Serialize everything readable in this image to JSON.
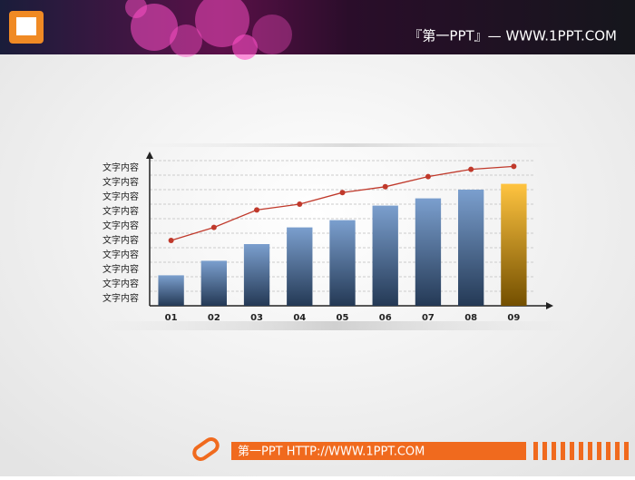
{
  "header": {
    "title": "『第一PPT』— WWW.1PPT.COM"
  },
  "footer": {
    "text": "第一PPT HTTP://WWW.1PPT.COM"
  },
  "chart_data": {
    "type": "bar",
    "categories": [
      "01",
      "02",
      "03",
      "04",
      "05",
      "06",
      "07",
      "08",
      "09"
    ],
    "series": [
      {
        "type": "bar",
        "colors": [
          "#4f7fbd",
          "#4f7fbd",
          "#4f7fbd",
          "#4f7fbd",
          "#4f7fbd",
          "#4f7fbd",
          "#4f7fbd",
          "#4f7fbd",
          "#ffb000"
        ],
        "values": [
          2.1,
          3.1,
          4.25,
          5.4,
          5.9,
          6.9,
          7.4,
          8.0,
          8.4
        ]
      },
      {
        "type": "line",
        "color": "#c0392b",
        "values": [
          4.5,
          5.4,
          6.6,
          7.0,
          7.8,
          8.2,
          8.9,
          9.4,
          9.6
        ]
      }
    ],
    "ylim": [
      0,
      10
    ],
    "yticks": [
      {
        "value": 0.5,
        "label": "文字内容"
      },
      {
        "value": 1.5,
        "label": "文字内容"
      },
      {
        "value": 2.5,
        "label": "文字内容"
      },
      {
        "value": 3.5,
        "label": "文字内容"
      },
      {
        "value": 4.5,
        "label": "文字内容"
      },
      {
        "value": 5.5,
        "label": "文字内容"
      },
      {
        "value": 6.5,
        "label": "文字内容"
      },
      {
        "value": 7.5,
        "label": "文字内容"
      },
      {
        "value": 8.5,
        "label": "文字内容"
      },
      {
        "value": 9.5,
        "label": "文字内容"
      }
    ],
    "grid": true
  }
}
